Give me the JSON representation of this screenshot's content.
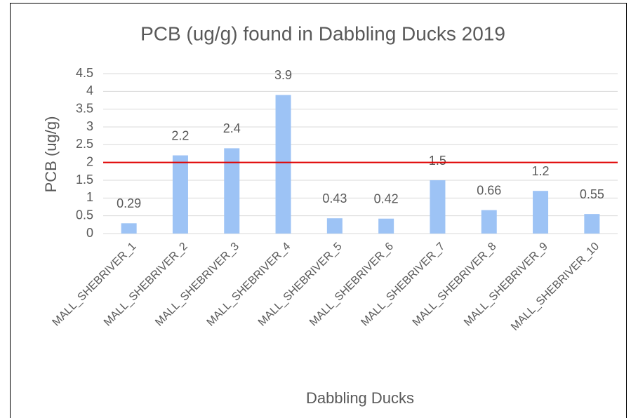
{
  "chart_data": {
    "type": "bar",
    "title": "PCB (ug/g) found in Dabbling Ducks 2019",
    "x_label": "Dabbling Ducks",
    "y_label": "PCB (ug/g)",
    "categories": [
      "MALL_SHEBRIVER_1",
      "MALL_SHEBRIVER_2",
      "MALL_SHEBRIVER_3",
      "MALL_SHEBRIVER_4",
      "MALL_SHEBRIVER_5",
      "MALL_SHEBRIVER_6",
      "MALL_SHEBRIVER_7",
      "MALL_SHEBRIVER_8",
      "MALL_SHEBRIVER_9",
      "MALL_SHEBRIVER_10"
    ],
    "values": [
      0.29,
      2.2,
      2.4,
      3.9,
      0.43,
      0.42,
      1.5,
      0.66,
      1.2,
      0.55
    ],
    "color": "#9dc3f5",
    "ylim": [
      0,
      4.5
    ],
    "yticks": [
      0,
      0.5,
      1,
      1.5,
      2,
      2.5,
      3,
      3.5,
      4,
      4.5
    ],
    "grid": true,
    "reference_line": {
      "value": 2,
      "color": "#e00000"
    }
  }
}
